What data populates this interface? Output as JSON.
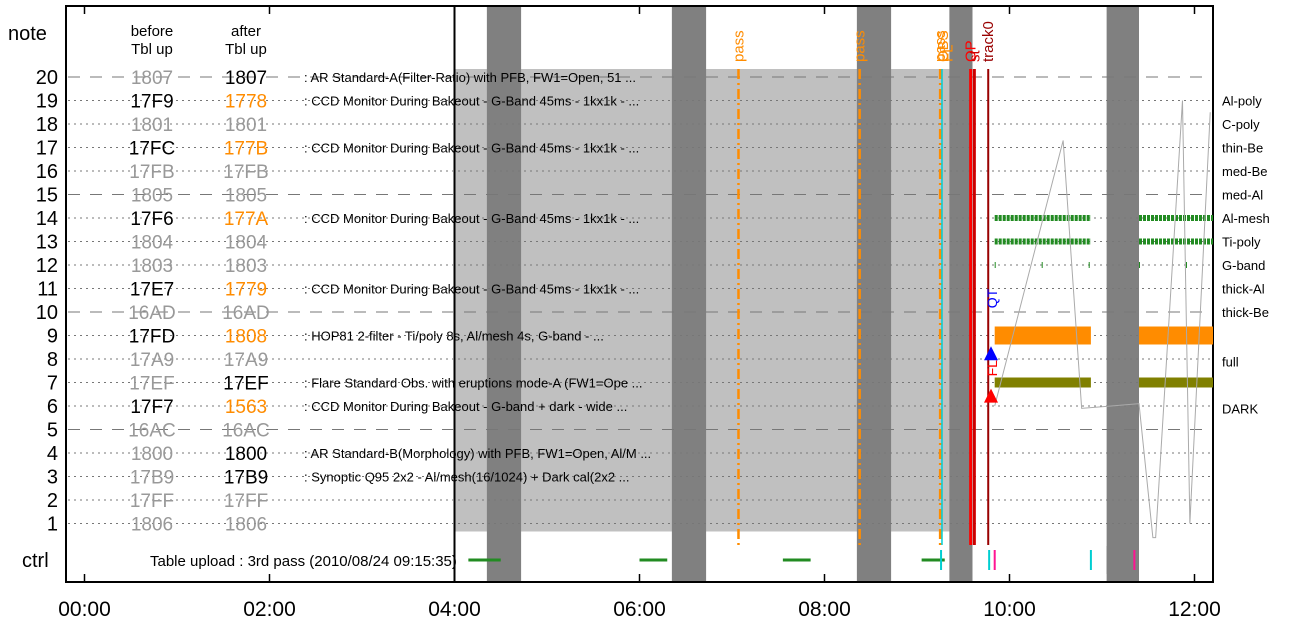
{
  "chart_data": {
    "type": "timeline",
    "x_axis": {
      "ticks": [
        "00:00",
        "02:00",
        "04:00",
        "06:00",
        "08:00",
        "10:00",
        "12:00"
      ],
      "range_hours": [
        -0.2,
        12.2
      ]
    },
    "headers": {
      "note": "note",
      "before": "before\nTbl up",
      "after": "after\nTbl up",
      "ctrl": "ctrl"
    },
    "rows": [
      {
        "n": 20,
        "before": "1807",
        "after": "1807",
        "bs": "struck",
        "as": "black",
        "desc": "AR Standard-A(Filter-Ratio) with PFB, FW1=Open, 51 ...",
        "dash": "long"
      },
      {
        "n": 19,
        "before": "17F9",
        "after": "1778",
        "bs": "black",
        "as": "orange",
        "desc": "CCD Monitor During Bakeout - G-Band 45ms - 1kx1k - ...",
        "dash": "dot"
      },
      {
        "n": 18,
        "before": "1801",
        "after": "1801",
        "bs": "struck",
        "as": "struck",
        "desc": "",
        "dash": "dot"
      },
      {
        "n": 17,
        "before": "17FC",
        "after": "177B",
        "bs": "black",
        "as": "orange",
        "desc": "CCD Monitor During Bakeout - G-Band 45ms - 1kx1k - ...",
        "dash": "dot"
      },
      {
        "n": 16,
        "before": "17FB",
        "after": "17FB",
        "bs": "struck",
        "as": "struck",
        "desc": "",
        "dash": "dot"
      },
      {
        "n": 15,
        "before": "1805",
        "after": "1805",
        "bs": "struck",
        "as": "struck",
        "desc": "",
        "dash": "long"
      },
      {
        "n": 14,
        "before": "17F6",
        "after": "177A",
        "bs": "black",
        "as": "orange",
        "desc": "CCD Monitor During Bakeout - G-Band 45ms - 1kx1k - ...",
        "dash": "dot"
      },
      {
        "n": 13,
        "before": "1804",
        "after": "1804",
        "bs": "struck",
        "as": "struck",
        "desc": "",
        "dash": "dot"
      },
      {
        "n": 12,
        "before": "1803",
        "after": "1803",
        "bs": "struck",
        "as": "struck",
        "desc": "",
        "dash": "dot"
      },
      {
        "n": 11,
        "before": "17E7",
        "after": "1779",
        "bs": "black",
        "as": "orange",
        "desc": "CCD Monitor During Bakeout - G-Band 45ms - 1kx1k - ...",
        "dash": "dot"
      },
      {
        "n": 10,
        "before": "16AD",
        "after": "16AD",
        "bs": "struck",
        "as": "struck",
        "desc": "",
        "dash": "long"
      },
      {
        "n": 9,
        "before": "17FD",
        "after": "1808",
        "bs": "black",
        "as": "orange",
        "desc": "HOP81 2-filter - Ti/poly 8s, Al/mesh 4s, G-band - ...",
        "dash": "dot"
      },
      {
        "n": 8,
        "before": "17A9",
        "after": "17A9",
        "bs": "struck",
        "as": "struck",
        "desc": "",
        "dash": "dot"
      },
      {
        "n": 7,
        "before": "17EF",
        "after": "17EF",
        "bs": "struck",
        "as": "black",
        "desc": "Flare Standard Obs. with eruptions mode-A (FW1=Ope ...",
        "dash": "dot"
      },
      {
        "n": 6,
        "before": "17F7",
        "after": "1563",
        "bs": "black",
        "as": "orange",
        "desc": "CCD Monitor During Bakeout - G-band + dark - wide ...",
        "dash": "dot"
      },
      {
        "n": 5,
        "before": "16AC",
        "after": "16AC",
        "bs": "struck",
        "as": "struck",
        "desc": "",
        "dash": "long"
      },
      {
        "n": 4,
        "before": "1800",
        "after": "1800",
        "bs": "struck",
        "as": "black",
        "desc": "AR Standard-B(Morphology) with PFB, FW1=Open, Al/M ...",
        "dash": "dot"
      },
      {
        "n": 3,
        "before": "17B9",
        "after": "17B9",
        "bs": "struck",
        "as": "black",
        "desc": "Synoptic Q95 2x2 - Al/mesh(16/1024) + Dark cal(2x2 ...",
        "dash": "dot"
      },
      {
        "n": 2,
        "before": "17FF",
        "after": "17FF",
        "bs": "struck",
        "as": "struck",
        "desc": "",
        "dash": "dot"
      },
      {
        "n": 1,
        "before": "1806",
        "after": "1806",
        "bs": "struck",
        "as": "struck",
        "desc": "",
        "dash": "dot"
      }
    ],
    "ctrl_text": "Table upload : 3rd pass (2010/08/24 09:15:35)",
    "filters": [
      {
        "label": "Al-poly",
        "row": 19
      },
      {
        "label": "C-poly",
        "row": 18
      },
      {
        "label": "thin-Be",
        "row": 17
      },
      {
        "label": "med-Be",
        "row": 16
      },
      {
        "label": "med-Al",
        "row": 15
      },
      {
        "label": "Al-mesh",
        "row": 14
      },
      {
        "label": "Ti-poly",
        "row": 13
      },
      {
        "label": "G-band",
        "row": 12
      },
      {
        "label": "thick-Al",
        "row": 11
      },
      {
        "label": "thick-Be",
        "row": 10
      },
      {
        "label": "full",
        "row": 7.9
      },
      {
        "label": "DARK",
        "row": 5.9
      }
    ],
    "night_bands": [
      [
        4.35,
        4.72
      ],
      [
        6.35,
        6.72
      ],
      [
        8.35,
        8.72
      ],
      [
        9.35,
        9.6
      ],
      [
        11.05,
        11.4
      ]
    ],
    "shade_region": [
      4.0,
      9.6
    ],
    "passes": [
      {
        "label": "pass",
        "t": 7.07
      },
      {
        "label": "pass",
        "t": 8.38
      },
      {
        "label": "pass",
        "t": 9.25
      }
    ],
    "markers": [
      {
        "label": "OBS",
        "t": 9.28,
        "color": "#ff8c00"
      },
      {
        "label": "FL",
        "t": 9.33,
        "color": "#ff8c00"
      },
      {
        "label": "OP",
        "t": 9.58,
        "color": "#ff0000"
      },
      {
        "label": "st",
        "t": 9.62,
        "color": "#cc0000"
      },
      {
        "label": "track0",
        "t": 9.77,
        "color": "#990000"
      }
    ],
    "flags": [
      {
        "label": "QT",
        "t": 9.8,
        "row": 10.5,
        "color": "#0000ff"
      },
      {
        "label": "FL",
        "t": 9.8,
        "row": 7.6,
        "color": "#ff0000"
      }
    ],
    "triangles": [
      {
        "t": 9.8,
        "row": 8.2,
        "color": "#0000ff"
      },
      {
        "t": 9.8,
        "row": 6.4,
        "color": "#ff0000"
      }
    ],
    "bar_segments": [
      [
        9.84,
        10.88
      ],
      [
        11.4,
        12.2
      ]
    ],
    "bar_rows": [
      {
        "row": 14,
        "color": "#228b22",
        "style": "dash"
      },
      {
        "row": 13,
        "color": "#228b22",
        "style": "dash"
      },
      {
        "row": 12,
        "color": "#228b22",
        "style": "tick"
      },
      {
        "row": 9,
        "color": "#ff8c00",
        "style": "thick"
      },
      {
        "row": 7,
        "color": "#808000",
        "style": "medium"
      }
    ],
    "ctrl_segments": [
      {
        "t0": 4.15,
        "t1": 4.5,
        "color": "#228b22"
      },
      {
        "t0": 6.0,
        "t1": 6.3,
        "color": "#228b22"
      },
      {
        "t0": 7.55,
        "t1": 7.85,
        "color": "#228b22"
      },
      {
        "t0": 9.05,
        "t1": 9.3,
        "color": "#228b22"
      }
    ],
    "ctrl_ticks": [
      {
        "t": 9.26,
        "color": "#00ced1"
      },
      {
        "t": 9.78,
        "color": "#00ced1"
      },
      {
        "t": 9.84,
        "color": "#ff1493"
      },
      {
        "t": 10.88,
        "color": "#00ced1"
      },
      {
        "t": 11.35,
        "color": "#ff1493"
      }
    ]
  }
}
